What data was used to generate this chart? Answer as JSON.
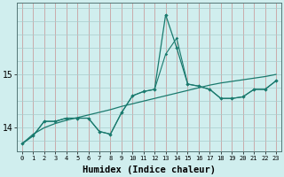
{
  "x": [
    0,
    1,
    2,
    3,
    4,
    5,
    6,
    7,
    8,
    9,
    10,
    11,
    12,
    13,
    14,
    15,
    16,
    17,
    18,
    19,
    20,
    21,
    22,
    23
  ],
  "line_zigzag": [
    13.7,
    13.85,
    14.12,
    14.12,
    14.18,
    14.18,
    14.18,
    13.93,
    13.88,
    14.28,
    14.6,
    14.68,
    14.72,
    16.12,
    15.5,
    14.82,
    14.78,
    14.72,
    14.55,
    14.55,
    14.58,
    14.72,
    14.72,
    14.88
  ],
  "line_smooth": [
    13.7,
    13.85,
    14.12,
    14.12,
    14.18,
    14.18,
    14.18,
    13.93,
    13.88,
    14.28,
    14.6,
    14.68,
    14.72,
    15.38,
    15.68,
    14.82,
    14.78,
    14.72,
    14.55,
    14.55,
    14.58,
    14.72,
    14.72,
    14.88
  ],
  "line_trend": [
    13.7,
    13.88,
    14.0,
    14.08,
    14.14,
    14.19,
    14.24,
    14.29,
    14.34,
    14.4,
    14.45,
    14.5,
    14.55,
    14.6,
    14.65,
    14.7,
    14.75,
    14.8,
    14.84,
    14.87,
    14.9,
    14.93,
    14.96,
    15.0
  ],
  "color": "#1a7a6e",
  "bg_color": "#d0eeee",
  "vgrid_color": "#c8a0a0",
  "hgrid_color": "#a8cccc",
  "xlabel": "Humidex (Indice chaleur)",
  "ytick_labels": [
    "14",
    "15"
  ],
  "ytick_vals": [
    14.0,
    15.0
  ],
  "ylim": [
    13.55,
    16.35
  ],
  "xlim": [
    -0.5,
    23.5
  ]
}
